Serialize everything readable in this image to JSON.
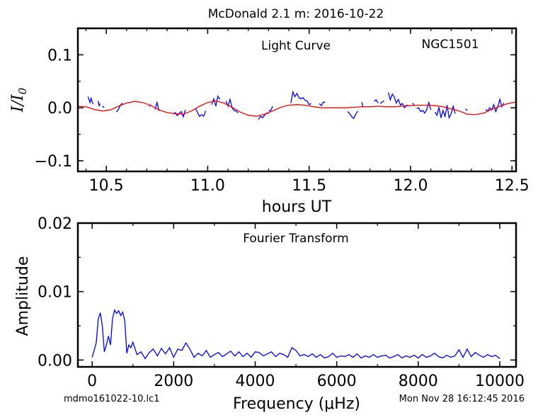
{
  "figure": {
    "title": "McDonald 2.1 m:  2016-10-22",
    "footer_left": "mdmo161022-10.lc1",
    "footer_right": "Mon Nov 28 16:12:45 2016"
  },
  "colors": {
    "data": "#0000ff",
    "model": "#ff0000",
    "axes": "#000000"
  },
  "chart_data": [
    {
      "type": "line",
      "title": "Light Curve",
      "annotation": "NGC1501",
      "xlabel": "hours UT",
      "ylabel": "I/I0",
      "xlim": [
        10.36,
        12.52
      ],
      "ylim": [
        -0.12,
        0.15
      ],
      "xticks": [
        10.5,
        11.0,
        11.5,
        12.0,
        12.5
      ],
      "xtick_labels": [
        "10.5",
        "11.0",
        "11.5",
        "12.0",
        "12.5"
      ],
      "yticks": [
        0.1,
        0.0,
        -0.1
      ],
      "ytick_labels": [
        "0.1",
        "0.0",
        "−0.1"
      ],
      "grid": false,
      "series": [
        {
          "role": "observed light curve",
          "color": "#0000ff",
          "segments": [
            [
              [
                10.41,
                0.021
              ],
              [
                10.42,
                0.01
              ],
              [
                10.425,
                0.018
              ],
              [
                10.43,
                0.012
              ],
              [
                10.435,
                0.007
              ]
            ],
            [
              [
                10.46,
                0.013
              ],
              [
                10.465,
                0.004
              ],
              [
                10.47,
                0.008
              ]
            ],
            [
              [
                10.48,
                0.003
              ],
              [
                10.49,
                0.001
              ]
            ],
            [
              [
                10.55,
                -0.008
              ],
              [
                10.56,
                -0.003
              ],
              [
                10.57,
                0.005
              ],
              [
                10.58,
                0.009
              ]
            ],
            [
              [
                10.71,
                0.003
              ],
              [
                10.72,
                0.006
              ]
            ],
            [
              [
                10.74,
                -0.003
              ],
              [
                10.75,
                0.01
              ],
              [
                10.76,
                -0.006
              ]
            ],
            [
              [
                10.83,
                -0.012
              ],
              [
                10.84,
                -0.009
              ],
              [
                10.85,
                -0.015
              ],
              [
                10.86,
                -0.01
              ],
              [
                10.87,
                -0.007
              ],
              [
                10.88,
                -0.017
              ],
              [
                10.89,
                -0.004
              ]
            ],
            [
              [
                10.94,
                -0.001
              ],
              [
                10.95,
                -0.009
              ],
              [
                10.96,
                -0.016
              ],
              [
                10.97,
                -0.013
              ],
              [
                10.98,
                -0.016
              ],
              [
                10.99,
                -0.006
              ]
            ],
            [
              [
                11.02,
                0.006
              ],
              [
                11.03,
                0.017
              ],
              [
                11.04,
                0.003
              ],
              [
                11.05,
                0.022
              ],
              [
                11.06,
                0.016
              ]
            ],
            [
              [
                11.09,
                0.013
              ],
              [
                11.1,
                0.003
              ],
              [
                11.11,
                0.016
              ],
              [
                11.12,
                0.0
              ],
              [
                11.13,
                -0.005
              ],
              [
                11.14,
                -0.006
              ],
              [
                11.15,
                -0.01
              ]
            ],
            [
              [
                11.25,
                -0.022
              ],
              [
                11.26,
                -0.016
              ],
              [
                11.27,
                -0.019
              ],
              [
                11.28,
                -0.014
              ],
              [
                11.29,
                -0.01
              ],
              [
                11.3,
                -0.011
              ]
            ],
            [
              [
                11.3,
                -0.005
              ],
              [
                11.31,
                -0.006
              ],
              [
                11.32,
                0.003
              ]
            ],
            [
              [
                11.41,
                0.009
              ],
              [
                11.42,
                0.03
              ],
              [
                11.43,
                0.021
              ],
              [
                11.44,
                0.027
              ],
              [
                11.45,
                0.019
              ],
              [
                11.46,
                0.017
              ],
              [
                11.47,
                0.019
              ],
              [
                11.48,
                0.014
              ],
              [
                11.49,
                0.013
              ],
              [
                11.5,
                0.006
              ],
              [
                11.51,
                0.008
              ]
            ],
            [
              [
                11.55,
                0.008
              ],
              [
                11.56,
                0.004
              ],
              [
                11.57,
                0.011
              ],
              [
                11.58,
                0.01
              ]
            ],
            [
              [
                11.69,
                -0.007
              ],
              [
                11.7,
                -0.011
              ],
              [
                11.71,
                -0.017
              ],
              [
                11.72,
                -0.02
              ],
              [
                11.73,
                -0.012
              ],
              [
                11.74,
                -0.006
              ]
            ],
            [
              [
                11.76,
                0.011
              ],
              [
                11.765,
                0.001
              ]
            ],
            [
              [
                11.82,
                0.012
              ],
              [
                11.83,
                0.015
              ],
              [
                11.84,
                0.009
              ]
            ],
            [
              [
                11.85,
                0.008
              ],
              [
                11.86,
                0.011
              ],
              [
                11.87,
                0.013
              ]
            ],
            [
              [
                11.89,
                0.029
              ],
              [
                11.9,
                0.015
              ],
              [
                11.91,
                0.026
              ],
              [
                11.92,
                0.02
              ],
              [
                11.93,
                0.009
              ],
              [
                11.94,
                0.016
              ],
              [
                11.95,
                0.005
              ],
              [
                11.96,
                0.008
              ],
              [
                11.97,
                0.0
              ],
              [
                11.98,
                0.005
              ],
              [
                11.99,
                0.004
              ]
            ],
            [
              [
                12.01,
                0.009
              ],
              [
                12.02,
                0.004
              ]
            ],
            [
              [
                12.03,
                -0.001
              ],
              [
                12.04,
                0.0
              ],
              [
                12.05,
                -0.007
              ],
              [
                12.06,
                -0.005
              ],
              [
                12.07,
                -0.01
              ],
              [
                12.08,
                -0.003
              ],
              [
                12.09,
                0.01
              ],
              [
                12.1,
                -0.004
              ]
            ],
            [
              [
                12.12,
                -0.008
              ],
              [
                12.13,
                -0.014
              ],
              [
                12.14,
                0.001
              ],
              [
                12.15,
                -0.019
              ],
              [
                12.16,
                -0.005
              ],
              [
                12.17,
                -0.016
              ],
              [
                12.18,
                0.005
              ],
              [
                12.19,
                -0.019
              ],
              [
                12.2,
                -0.011
              ],
              [
                12.21,
                0.003
              ],
              [
                12.22,
                -0.011
              ]
            ],
            [
              [
                12.27,
                -0.002
              ],
              [
                12.28,
                -0.005
              ]
            ],
            [
              [
                12.37,
                -0.003
              ],
              [
                12.38,
                -0.006
              ],
              [
                12.39,
                0.0
              ],
              [
                12.4,
                -0.004
              ],
              [
                12.41,
                0.006
              ],
              [
                12.42,
                -0.007
              ],
              [
                12.43,
                0.002
              ],
              [
                12.44,
                0.016
              ],
              [
                12.45,
                0.002
              ],
              [
                12.46,
                0.009
              ]
            ]
          ]
        },
        {
          "role": "model fit",
          "color": "#ff0000",
          "x": [
            10.36,
            10.4,
            10.44,
            10.48,
            10.52,
            10.56,
            10.6,
            10.64,
            10.68,
            10.72,
            10.76,
            10.8,
            10.84,
            10.88,
            10.92,
            10.96,
            11.0,
            11.04,
            11.08,
            11.12,
            11.16,
            11.2,
            11.24,
            11.28,
            11.32,
            11.36,
            11.4,
            11.44,
            11.48,
            11.52,
            11.56,
            11.6,
            11.64,
            11.68,
            11.72,
            11.76,
            11.8,
            11.84,
            11.88,
            11.92,
            11.96,
            12.0,
            12.04,
            12.08,
            12.12,
            12.16,
            12.2,
            12.24,
            12.28,
            12.32,
            12.36,
            12.4,
            12.44,
            12.48,
            12.52
          ],
          "y": [
            0.003,
            0.002,
            -0.003,
            -0.006,
            -0.004,
            0.003,
            0.009,
            0.012,
            0.01,
            0.004,
            -0.004,
            -0.009,
            -0.011,
            -0.012,
            -0.006,
            0.003,
            0.01,
            0.013,
            0.009,
            0.001,
            -0.008,
            -0.014,
            -0.016,
            -0.012,
            -0.006,
            0.001,
            0.005,
            0.006,
            0.005,
            0.002,
            0.0,
            0.0,
            0.0,
            0.0,
            0.001,
            0.002,
            0.002,
            0.003,
            0.002,
            0.002,
            0.003,
            0.004,
            0.005,
            0.005,
            0.004,
            0.002,
            -0.002,
            -0.006,
            -0.012,
            -0.013,
            -0.01,
            -0.003,
            0.003,
            0.008,
            0.011
          ]
        }
      ]
    },
    {
      "type": "line",
      "title": "Fourier Transform",
      "xlabel": "Frequency (μHz)",
      "ylabel": "Amplitude",
      "xlim": [
        -350,
        10400
      ],
      "ylim": [
        -0.001,
        0.02
      ],
      "xticks": [
        0,
        2000,
        4000,
        6000,
        8000,
        10000
      ],
      "xtick_labels": [
        "0",
        "2000",
        "4000",
        "6000",
        "8000",
        "10000"
      ],
      "yticks": [
        0.0,
        0.01,
        0.02
      ],
      "ytick_labels": [
        "0.00",
        "0.01",
        "0.02"
      ],
      "grid": false,
      "series": [
        {
          "role": "amplitude spectrum",
          "color": "#0000ff",
          "x": [
            0,
            100,
            150,
            200,
            250,
            300,
            350,
            400,
            450,
            500,
            550,
            600,
            650,
            700,
            750,
            800,
            850,
            900,
            950,
            1000,
            1100,
            1200,
            1300,
            1400,
            1500,
            1600,
            1700,
            1800,
            1900,
            2000,
            2100,
            2200,
            2300,
            2400,
            2500,
            2600,
            2700,
            2800,
            2900,
            3000,
            3100,
            3200,
            3300,
            3400,
            3500,
            3600,
            3700,
            3800,
            3900,
            4000,
            4100,
            4200,
            4300,
            4400,
            4500,
            4600,
            4700,
            4800,
            4900,
            5000,
            5100,
            5200,
            5300,
            5400,
            5500,
            5600,
            5700,
            5800,
            5900,
            6000,
            6100,
            6200,
            6300,
            6400,
            6500,
            6600,
            6700,
            6800,
            6900,
            7000,
            7100,
            7200,
            7300,
            7400,
            7500,
            7600,
            7700,
            7800,
            7900,
            8000,
            8100,
            8200,
            8300,
            8400,
            8500,
            8600,
            8700,
            8800,
            8900,
            9000,
            9100,
            9200,
            9300,
            9400,
            9500,
            9600,
            9700,
            9800,
            9900,
            10000
          ],
          "y": [
            0.0004,
            0.0025,
            0.006,
            0.0069,
            0.005,
            0.0012,
            0.0022,
            0.0035,
            0.0022,
            0.006,
            0.0073,
            0.0068,
            0.0072,
            0.0065,
            0.007,
            0.0058,
            0.001,
            0.0022,
            0.0018,
            0.0026,
            0.0008,
            0.0012,
            0.0002,
            0.0011,
            0.0016,
            0.0006,
            0.0017,
            0.0009,
            0.0018,
            0.0004,
            0.0016,
            0.0014,
            0.0025,
            0.0016,
            0.0004,
            0.001,
            0.0006,
            0.0014,
            0.0004,
            0.0008,
            0.0011,
            0.0005,
            0.0009,
            0.0013,
            0.0006,
            0.0012,
            0.0005,
            0.001,
            0.0004,
            0.0012,
            0.0011,
            0.0006,
            0.0009,
            0.0012,
            0.0005,
            0.001,
            0.0008,
            0.0004,
            0.0018,
            0.0014,
            0.0006,
            0.0008,
            0.0005,
            0.0009,
            0.0004,
            0.0008,
            0.0003,
            0.0005,
            0.001,
            0.0004,
            0.0006,
            0.0005,
            0.0008,
            0.0004,
            0.0009,
            0.0003,
            0.0006,
            0.0004,
            0.0008,
            0.0004,
            0.0006,
            0.0007,
            0.0003,
            0.0005,
            0.0008,
            0.0003,
            0.0006,
            0.0004,
            0.0007,
            0.0003,
            0.0008,
            0.0004,
            0.0006,
            0.001,
            0.0005,
            0.0003,
            0.0007,
            0.0004,
            0.0006,
            0.0015,
            0.0004,
            0.0016,
            0.0005,
            0.0011,
            0.0007,
            0.0004,
            0.0008,
            0.0005,
            0.0007,
            0.0002
          ]
        }
      ]
    }
  ]
}
